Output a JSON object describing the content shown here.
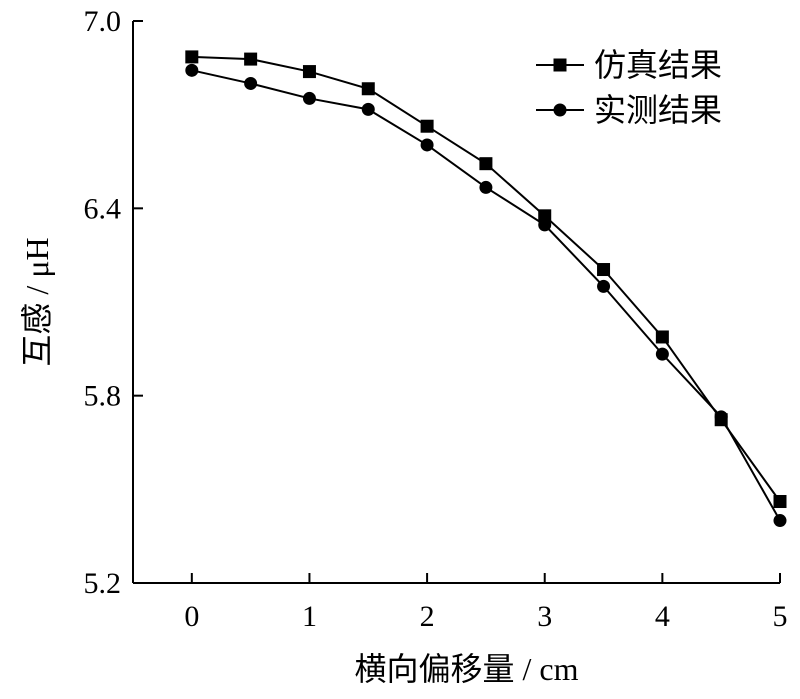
{
  "chart_data": {
    "type": "line",
    "xlabel": "横向偏移量 / cm",
    "ylabel": "互感 / μH",
    "xlim": [
      -0.5,
      5
    ],
    "ylim": [
      5.2,
      7.0
    ],
    "xticks": [
      0,
      1,
      2,
      3,
      4,
      5
    ],
    "yticks": [
      5.2,
      5.8,
      6.4,
      7.0
    ],
    "xtick_labels": [
      "0",
      "1",
      "2",
      "3",
      "4",
      "5"
    ],
    "ytick_labels": [
      "5.2",
      "5.8",
      "6.4",
      "7.0"
    ],
    "grid": false,
    "legend_position": "top-right",
    "x": [
      0,
      0.5,
      1,
      1.5,
      2,
      2.5,
      3,
      3.5,
      4,
      4.5,
      5
    ],
    "series": [
      {
        "name": "仿真结果",
        "marker": "square",
        "color": "#000000",
        "values": [
          6.885,
          6.878,
          6.838,
          6.783,
          6.663,
          6.543,
          6.376,
          6.204,
          5.988,
          5.723,
          5.461
        ]
      },
      {
        "name": "实测结果",
        "marker": "circle",
        "color": "#000000",
        "values": [
          6.842,
          6.8,
          6.752,
          6.717,
          6.603,
          6.467,
          6.347,
          6.15,
          5.933,
          5.732,
          5.4
        ]
      }
    ]
  }
}
